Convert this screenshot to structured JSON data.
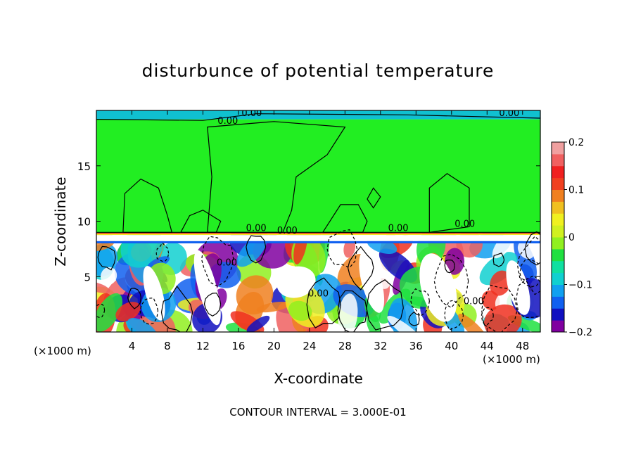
{
  "chart_data": {
    "type": "heatmap",
    "title": "disturbunce of potential temperature",
    "xlabel": "X-coordinate",
    "ylabel": "Z-coordinate",
    "x_unit": "(×1000 m)",
    "contour_interval_text": "CONTOUR INTERVAL = 3.000E-01",
    "xlim": [
      0,
      50
    ],
    "ylim": [
      0,
      20
    ],
    "x_ticks": [
      4,
      8,
      12,
      16,
      20,
      24,
      28,
      32,
      36,
      40,
      44,
      48
    ],
    "y_ticks": [
      5,
      10,
      15
    ],
    "colorbar": {
      "min": -0.2,
      "max": 0.2,
      "tick_values": [
        0.2,
        0.1,
        0,
        -0.1,
        -0.2
      ],
      "tick_labels": [
        "0.2",
        "0.1",
        "0",
        "−0.1",
        "−0.2"
      ],
      "colors": [
        "#8000a0",
        "#1010c0",
        "#1060f0",
        "#10a0f0",
        "#10d0d0",
        "#10e0a0",
        "#20e040",
        "#90f020",
        "#d0f020",
        "#f0f020",
        "#f0c020",
        "#f08020",
        "#f04020",
        "#f02020",
        "#f06060",
        "#f0a0a0"
      ]
    },
    "contour_labels": [
      "0.00",
      "0.00",
      "0.00",
      "0.00",
      "0.00",
      "0.00",
      "0.00",
      "0.00",
      "0.00",
      "0.00"
    ],
    "colors": {
      "upper_layer": "#22ee22",
      "background": "#ffffff"
    }
  }
}
